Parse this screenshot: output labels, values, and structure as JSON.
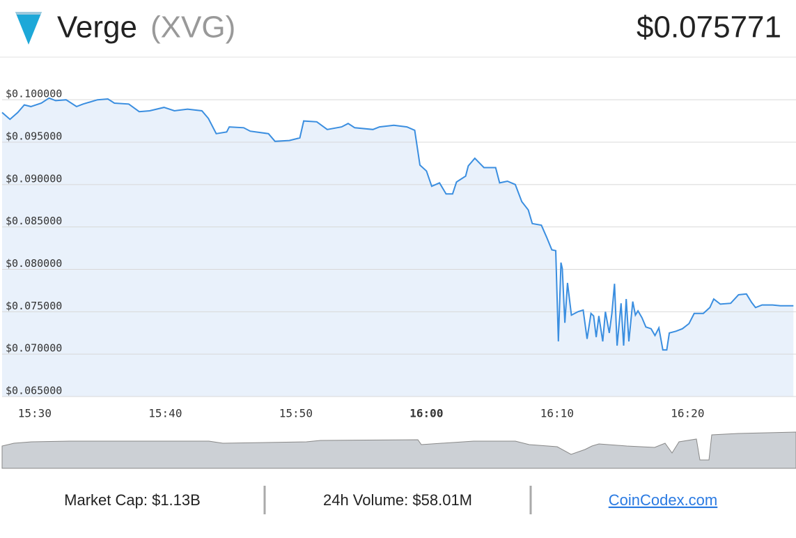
{
  "header": {
    "name": "Verge",
    "symbol": "(XVG)",
    "price": "$0.075771"
  },
  "chart_data": {
    "type": "area",
    "color": "#3a8ee0",
    "fill": "#e9f1fb",
    "grid": true,
    "xlim": [
      927.5,
      988.3
    ],
    "ylim": [
      0.065,
      0.101
    ],
    "xticks": [
      {
        "value": 930,
        "label": "15:30"
      },
      {
        "value": 940,
        "label": "15:40"
      },
      {
        "value": 950,
        "label": "15:50"
      },
      {
        "value": 960,
        "label": "16:00"
      },
      {
        "value": 970,
        "label": "16:10"
      },
      {
        "value": 980,
        "label": "16:20"
      }
    ],
    "yticks": [
      {
        "value": 0.1,
        "label": "$0.100000"
      },
      {
        "value": 0.095,
        "label": "$0.095000"
      },
      {
        "value": 0.09,
        "label": "$0.090000"
      },
      {
        "value": 0.085,
        "label": "$0.085000"
      },
      {
        "value": 0.08,
        "label": "$0.080000"
      },
      {
        "value": 0.075,
        "label": "$0.075000"
      },
      {
        "value": 0.07,
        "label": "$0.070000"
      },
      {
        "value": 0.065,
        "label": "$0.065000"
      }
    ],
    "x": [
      927.5,
      928.1,
      928.7,
      929.2,
      929.7,
      930.5,
      931.1,
      931.6,
      932.4,
      933.2,
      933.7,
      934.8,
      935.6,
      936.1,
      937.2,
      938.0,
      938.8,
      939.9,
      940.7,
      941.7,
      942.8,
      943.3,
      943.9,
      944.7,
      944.9,
      946.0,
      946.5,
      947.9,
      948.4,
      949.5,
      950.3,
      950.6,
      951.6,
      952.4,
      953.5,
      954.0,
      954.5,
      955.9,
      956.4,
      957.5,
      958.5,
      959.1,
      959.5,
      960.0,
      960.4,
      961.0,
      961.5,
      962.0,
      962.3,
      963.0,
      963.2,
      963.7,
      964.4,
      965.3,
      965.6,
      966.2,
      966.8,
      967.3,
      967.8,
      968.1,
      968.8,
      969.2,
      969.6,
      969.9,
      970.1,
      970.3,
      970.4,
      970.6,
      970.8,
      971.1,
      971.6,
      972.0,
      972.3,
      972.6,
      972.8,
      973.0,
      973.2,
      973.5,
      973.7,
      974.0,
      974.2,
      974.4,
      974.6,
      974.9,
      975.1,
      975.3,
      975.5,
      975.8,
      976.0,
      976.2,
      976.5,
      976.8,
      977.2,
      977.5,
      977.8,
      978.1,
      978.4,
      978.6,
      979.1,
      979.6,
      980.1,
      980.5,
      981.2,
      981.7,
      982.0,
      982.5,
      983.3,
      983.9,
      984.5,
      984.9,
      985.2,
      985.7,
      986.5,
      987.1,
      988.1
    ],
    "values": [
      0.0985,
      0.0977,
      0.0985,
      0.0994,
      0.0992,
      0.0996,
      0.1002,
      0.0999,
      0.1,
      0.0992,
      0.0995,
      0.1,
      0.1001,
      0.0996,
      0.0995,
      0.0986,
      0.0987,
      0.0991,
      0.0987,
      0.0989,
      0.0987,
      0.0978,
      0.096,
      0.0962,
      0.0968,
      0.0967,
      0.0963,
      0.096,
      0.0951,
      0.0952,
      0.0955,
      0.0975,
      0.0974,
      0.0965,
      0.0968,
      0.0972,
      0.0967,
      0.0965,
      0.0968,
      0.097,
      0.0968,
      0.0964,
      0.0923,
      0.0916,
      0.0898,
      0.0902,
      0.0889,
      0.0889,
      0.0903,
      0.091,
      0.0922,
      0.0931,
      0.092,
      0.092,
      0.0902,
      0.0904,
      0.09,
      0.088,
      0.087,
      0.0854,
      0.0852,
      0.0838,
      0.0823,
      0.0822,
      0.0715,
      0.0808,
      0.0801,
      0.0737,
      0.0784,
      0.0746,
      0.075,
      0.0752,
      0.0718,
      0.0748,
      0.0745,
      0.072,
      0.0745,
      0.0715,
      0.075,
      0.0725,
      0.0748,
      0.0783,
      0.071,
      0.076,
      0.071,
      0.0765,
      0.0715,
      0.0762,
      0.0746,
      0.0751,
      0.0743,
      0.0732,
      0.073,
      0.0722,
      0.0731,
      0.0705,
      0.0705,
      0.0725,
      0.0727,
      0.073,
      0.0736,
      0.0748,
      0.0748,
      0.0755,
      0.0765,
      0.0759,
      0.076,
      0.077,
      0.0771,
      0.0761,
      0.0755,
      0.0758,
      0.0758,
      0.0757,
      0.0757
    ]
  },
  "footer": {
    "market_cap": "Market Cap: $1.13B",
    "volume": "24h Volume: $58.01M",
    "link": "CoinCodex.com"
  }
}
